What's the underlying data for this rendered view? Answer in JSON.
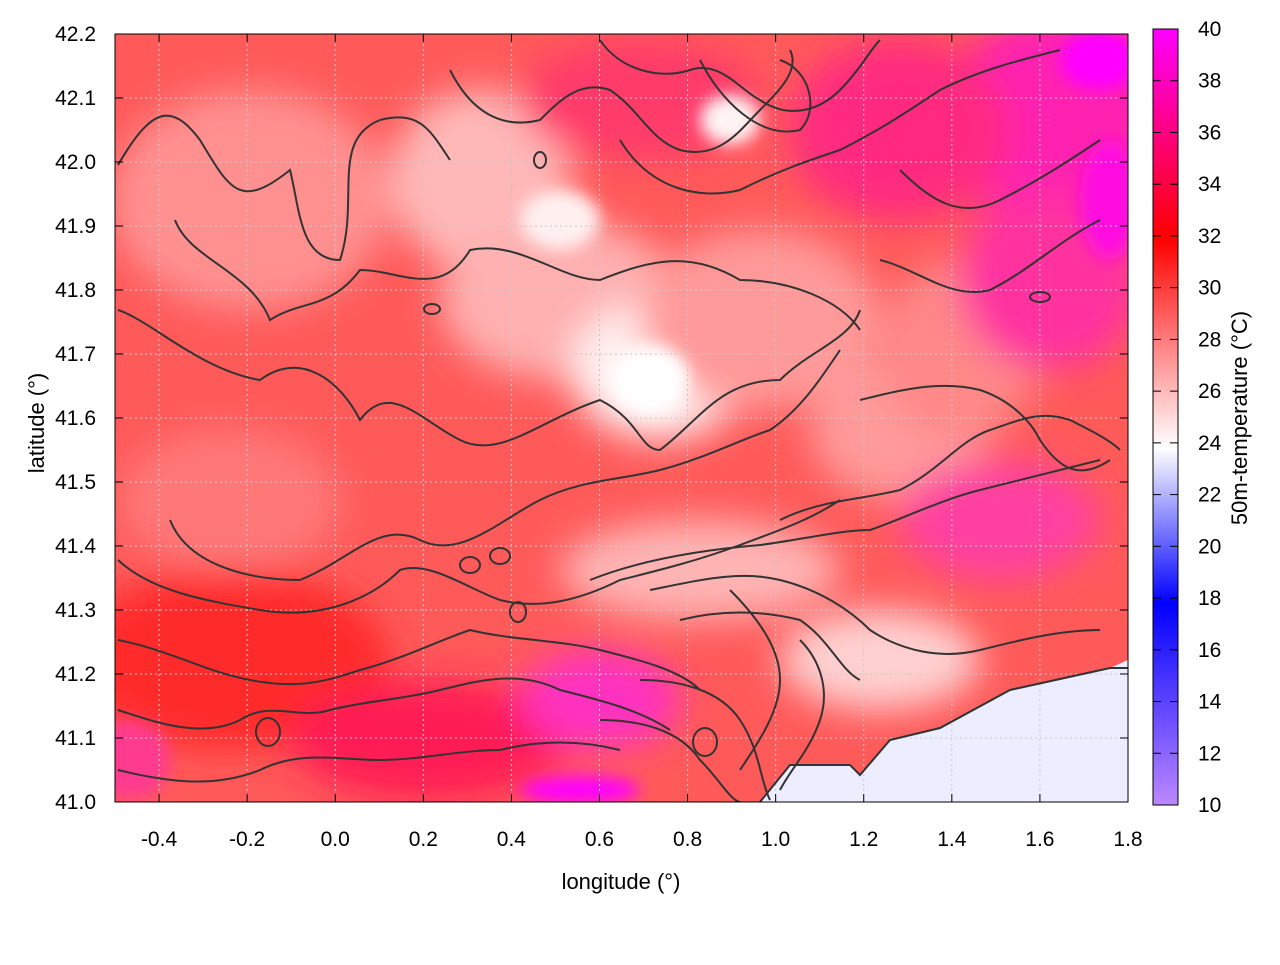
{
  "chart_data": {
    "type": "heatmap",
    "title": "",
    "xlabel": "longitude (°)",
    "ylabel": "latitude (°)",
    "xlim": [
      -0.5,
      1.8
    ],
    "ylim": [
      41.0,
      42.2
    ],
    "x_ticks": [
      "-0.4",
      "-0.2",
      "0.0",
      "0.2",
      "0.4",
      "0.6",
      "0.8",
      "1.0",
      "1.2",
      "1.4",
      "1.6",
      "1.8"
    ],
    "y_ticks": [
      "41.0",
      "41.1",
      "41.2",
      "41.3",
      "41.4",
      "41.5",
      "41.6",
      "41.7",
      "41.8",
      "41.9",
      "42.0",
      "42.1",
      "42.2"
    ],
    "grid": true,
    "colorbar": {
      "label": "50m-temperature (°C)",
      "range": [
        10,
        40
      ],
      "ticks": [
        "10",
        "12",
        "14",
        "16",
        "18",
        "20",
        "22",
        "24",
        "26",
        "28",
        "30",
        "32",
        "34",
        "36",
        "38",
        "40"
      ],
      "colors": [
        "#bb88ff",
        "#0000ff",
        "#ffffff",
        "#ff0000",
        "#ff00ff"
      ]
    },
    "field_description_regions": [
      {
        "name": "sea",
        "lon_range": [
          0.95,
          1.8
        ],
        "lat_range": [
          41.0,
          41.2
        ],
        "value": 24
      },
      {
        "name": "central-plateau-max-cool",
        "lon": 0.75,
        "lat": 41.68,
        "value": 25
      }
    ],
    "contour_color": "#333333"
  }
}
